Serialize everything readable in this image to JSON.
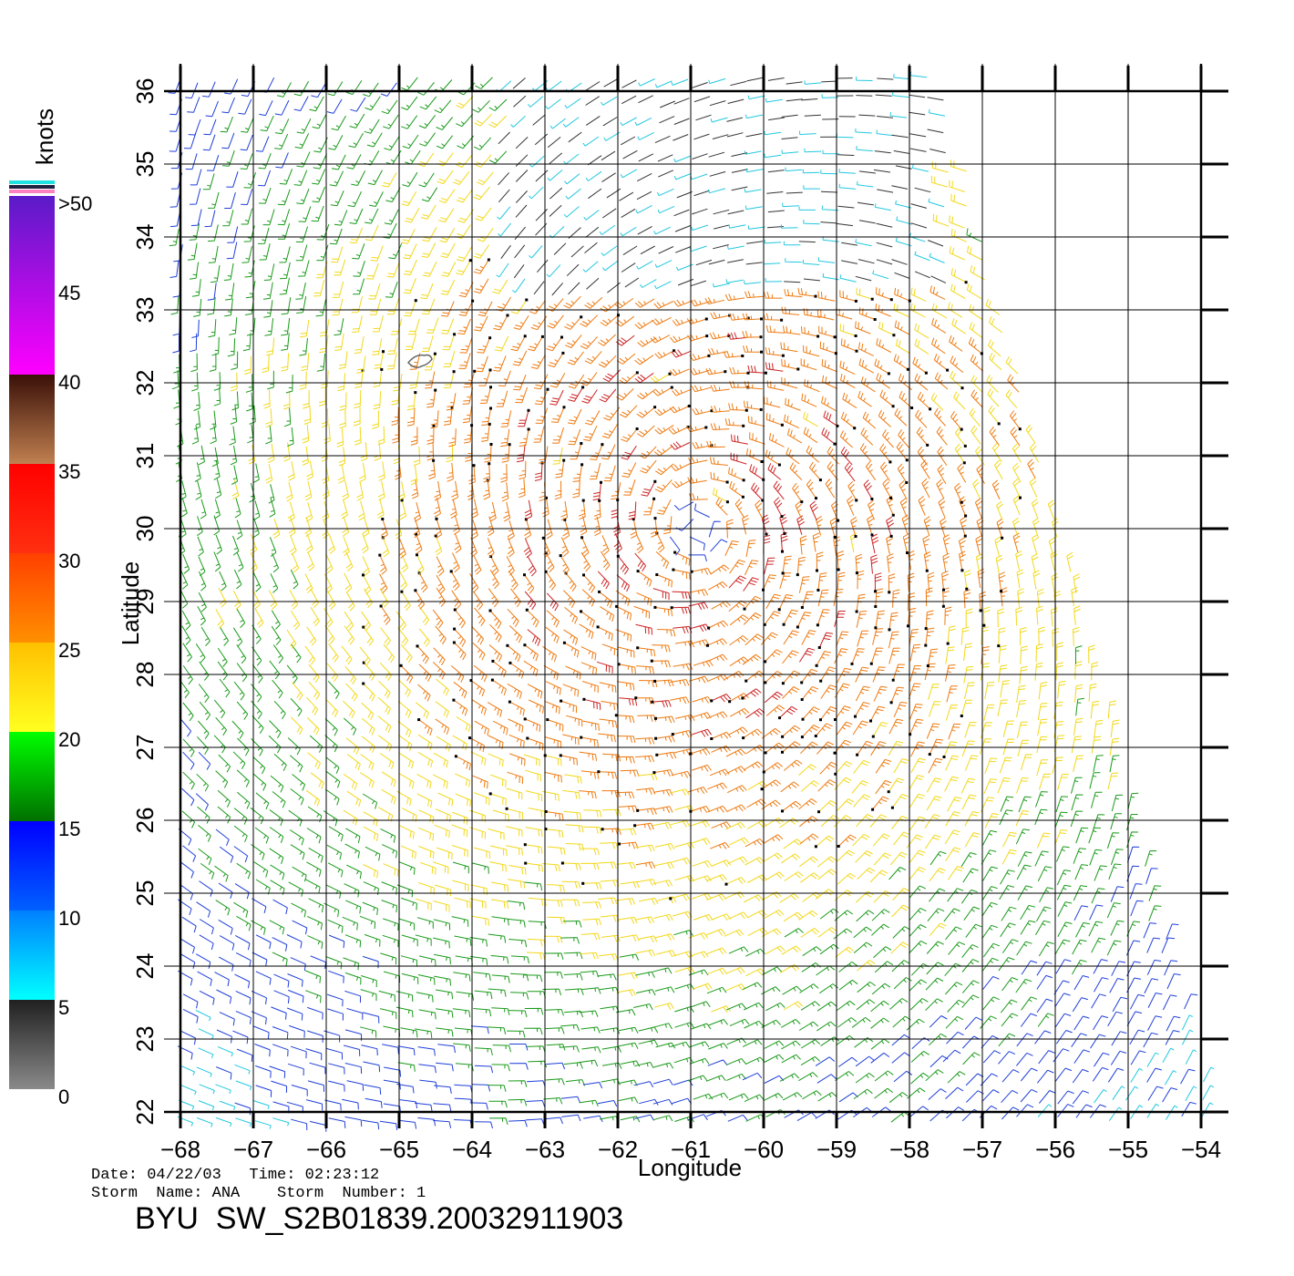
{
  "chart_data": {
    "type": "vector-field",
    "xlabel": "Longitude",
    "ylabel": "Latitude",
    "xlim": [
      -68,
      -54
    ],
    "ylim": [
      22,
      36
    ],
    "x_ticks": [
      "-68",
      "-67",
      "-66",
      "-65",
      "-64",
      "-63",
      "-62",
      "-61",
      "-60",
      "-59",
      "-58",
      "-57",
      "-56",
      "-55",
      "-54"
    ],
    "y_ticks": [
      "22",
      "23",
      "24",
      "25",
      "26",
      "27",
      "28",
      "29",
      "30",
      "31",
      "32",
      "33",
      "34",
      "35",
      "36"
    ],
    "grid": true,
    "storm_center": {
      "lon": -60.9,
      "lat": 30.0
    },
    "colorbar": {
      "unit_label": "knots",
      "tick_labels": [
        ">50",
        "45",
        "40",
        "35",
        "30",
        "25",
        "20",
        "15",
        "10",
        "5",
        "0"
      ],
      "bands": [
        {
          "from": 50,
          "to": 40,
          "top": "#5a1bc8",
          "bottom": "#ff00ff"
        },
        {
          "from": 40,
          "to": 35,
          "top": "#3a1008",
          "bottom": "#c08050"
        },
        {
          "from": 35,
          "to": 30,
          "top": "#ff0000",
          "bottom": "#ff3010"
        },
        {
          "from": 30,
          "to": 25,
          "top": "#ff4000",
          "bottom": "#ff9000"
        },
        {
          "from": 25,
          "to": 20,
          "top": "#ffc000",
          "bottom": "#ffff20"
        },
        {
          "from": 20,
          "to": 15,
          "top": "#00ff00",
          "bottom": "#007000"
        },
        {
          "from": 15,
          "to": 10,
          "top": "#0000ff",
          "bottom": "#0060ff"
        },
        {
          "from": 10,
          "to": 5,
          "top": "#0080ff",
          "bottom": "#00ffff"
        },
        {
          "from": 5,
          "to": 0,
          "top": "#202020",
          "bottom": "#8a8a8a"
        }
      ],
      "speed_colors": {
        "calm": "#333333",
        "light": "#22c8e0",
        "moderate": "#1f3fd8",
        "fresh": "#1a9a1a",
        "strong": "#f2d81a",
        "gale": "#ee7a10",
        "storm": "#cc2222"
      }
    },
    "footer": {
      "date_line": "Date: 04/22/03   Time: 02:23:12",
      "storm_line": "Storm  Name: ANA    Storm  Number: 1",
      "product_id": "BYU  SW_S2B01839.20032911903"
    }
  }
}
